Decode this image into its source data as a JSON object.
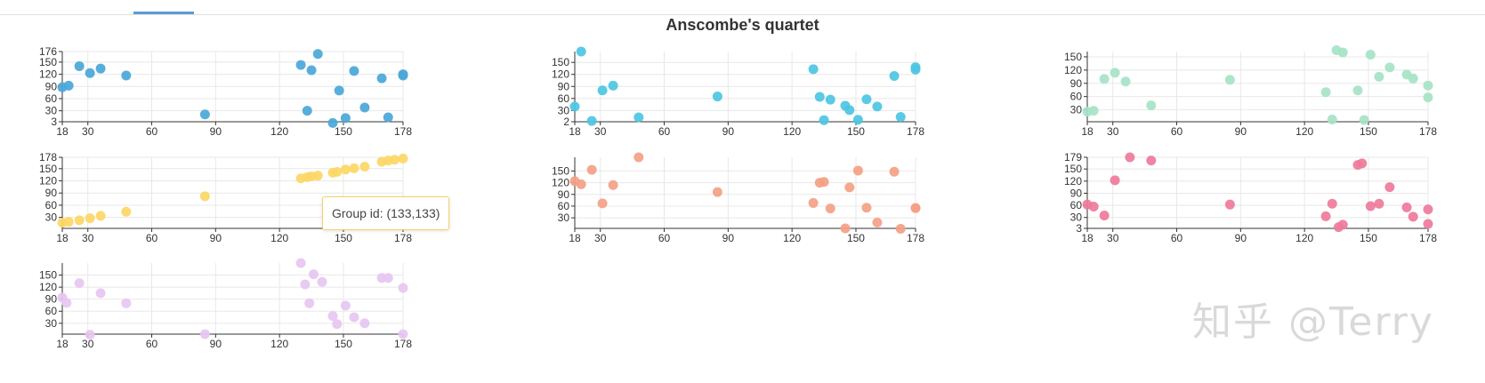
{
  "header": {
    "title": "Anscombe's quartet"
  },
  "tooltip": {
    "text": "Group id: (133,133)"
  },
  "watermark": {
    "text": "知乎 @Terry"
  },
  "chart_data": [
    {
      "type": "scatter",
      "series": "1",
      "color": "#4aa7d8",
      "xlim": [
        18,
        178
      ],
      "ylim": [
        3,
        176
      ],
      "xticks": [
        18,
        30,
        60,
        90,
        120,
        150,
        178
      ],
      "yticks": [
        3,
        30,
        60,
        90,
        120,
        150,
        176
      ],
      "x": [
        18,
        21,
        26,
        31,
        36,
        48,
        85,
        130,
        133,
        135,
        138,
        145,
        148,
        151,
        155,
        160,
        168,
        171,
        178,
        178
      ],
      "y": [
        88,
        92,
        140,
        123,
        134,
        117,
        21,
        143,
        30,
        130,
        170,
        0,
        80,
        12,
        128,
        38,
        110,
        14,
        117,
        120
      ]
    },
    {
      "type": "scatter",
      "series": "2",
      "color": "#4cc6e3",
      "xlim": [
        18,
        178
      ],
      "ylim": [
        2,
        177
      ],
      "xticks": [
        18,
        30,
        60,
        90,
        120,
        150,
        178
      ],
      "yticks": [
        2,
        30,
        60,
        90,
        120,
        150
      ],
      "x": [
        18,
        21,
        26,
        31,
        36,
        48,
        85,
        130,
        133,
        135,
        138,
        145,
        147,
        151,
        155,
        160,
        168,
        171,
        178,
        178
      ],
      "y": [
        40,
        177,
        4,
        80,
        92,
        13,
        65,
        133,
        64,
        6,
        57,
        42,
        31,
        7,
        58,
        40,
        116,
        14,
        132,
        138
      ]
    },
    {
      "type": "scatter",
      "series": "3",
      "color": "#a6e3c5",
      "xlim": [
        18,
        178
      ],
      "ylim": [
        3,
        162
      ],
      "xticks": [
        18,
        30,
        60,
        90,
        120,
        150,
        178
      ],
      "yticks": [
        30,
        60,
        90,
        120,
        150
      ],
      "x": [
        18,
        21,
        26,
        31,
        36,
        48,
        85,
        130,
        133,
        135,
        138,
        145,
        148,
        151,
        155,
        160,
        168,
        171,
        178,
        178
      ],
      "y": [
        26,
        28,
        100,
        114,
        94,
        40,
        98,
        70,
        8,
        165,
        160,
        74,
        7,
        155,
        105,
        126,
        110,
        101,
        58,
        85
      ]
    },
    {
      "type": "scatter",
      "series": "4",
      "color": "#fcd765",
      "xlim": [
        18,
        178
      ],
      "ylim": [
        3,
        178
      ],
      "xticks": [
        18,
        30,
        60,
        90,
        120,
        150,
        178
      ],
      "yticks": [
        30,
        60,
        90,
        120,
        150,
        178
      ],
      "x": [
        18,
        21,
        26,
        31,
        36,
        48,
        85,
        130,
        133,
        135,
        138,
        145,
        147,
        151,
        155,
        160,
        168,
        171,
        174,
        178
      ],
      "y": [
        17,
        19,
        23,
        28,
        34,
        44,
        82,
        126,
        129,
        131,
        133,
        140,
        142,
        148,
        151,
        155,
        167,
        170,
        172,
        175
      ]
    },
    {
      "type": "scatter",
      "series": "5",
      "color": "#f3a185",
      "xlim": [
        18,
        178
      ],
      "ylim": [
        3,
        185
      ],
      "xticks": [
        18,
        30,
        60,
        90,
        120,
        150,
        178
      ],
      "yticks": [
        30,
        60,
        90,
        120,
        150
      ],
      "x": [
        18,
        21,
        26,
        31,
        36,
        48,
        85,
        130,
        133,
        135,
        138,
        145,
        147,
        151,
        155,
        160,
        168,
        171,
        178,
        178
      ],
      "y": [
        124,
        116,
        153,
        67,
        114,
        185,
        96,
        68,
        120,
        122,
        54,
        3,
        108,
        151,
        56,
        18,
        148,
        2,
        55,
        55
      ]
    },
    {
      "type": "scatter",
      "series": "6",
      "color": "#ee799b",
      "xlim": [
        18,
        178
      ],
      "ylim": [
        3,
        179
      ],
      "xticks": [
        18,
        30,
        60,
        90,
        120,
        150,
        178
      ],
      "yticks": [
        3,
        30,
        60,
        90,
        120,
        150,
        179
      ],
      "x": [
        18,
        21,
        26,
        31,
        38,
        48,
        85,
        130,
        133,
        136,
        138,
        145,
        147,
        151,
        155,
        160,
        168,
        171,
        178,
        178
      ],
      "y": [
        62,
        57,
        35,
        122,
        179,
        171,
        62,
        33,
        64,
        6,
        12,
        160,
        164,
        58,
        64,
        105,
        55,
        32,
        50,
        14
      ]
    },
    {
      "type": "scatter",
      "series": "7",
      "color": "#e7c6f2",
      "xlim": [
        18,
        178
      ],
      "ylim": [
        3,
        180
      ],
      "xticks": [
        18,
        30,
        60,
        90,
        120,
        150,
        178
      ],
      "yticks": [
        30,
        60,
        90,
        120,
        150
      ],
      "x": [
        18,
        20,
        26,
        31,
        36,
        48,
        85,
        130,
        132,
        134,
        136,
        140,
        145,
        147,
        151,
        155,
        160,
        168,
        171,
        178,
        178
      ],
      "y": [
        94,
        81,
        130,
        2,
        105,
        80,
        3,
        180,
        127,
        80,
        152,
        133,
        48,
        28,
        74,
        45,
        30,
        143,
        143,
        118,
        3
      ]
    }
  ]
}
